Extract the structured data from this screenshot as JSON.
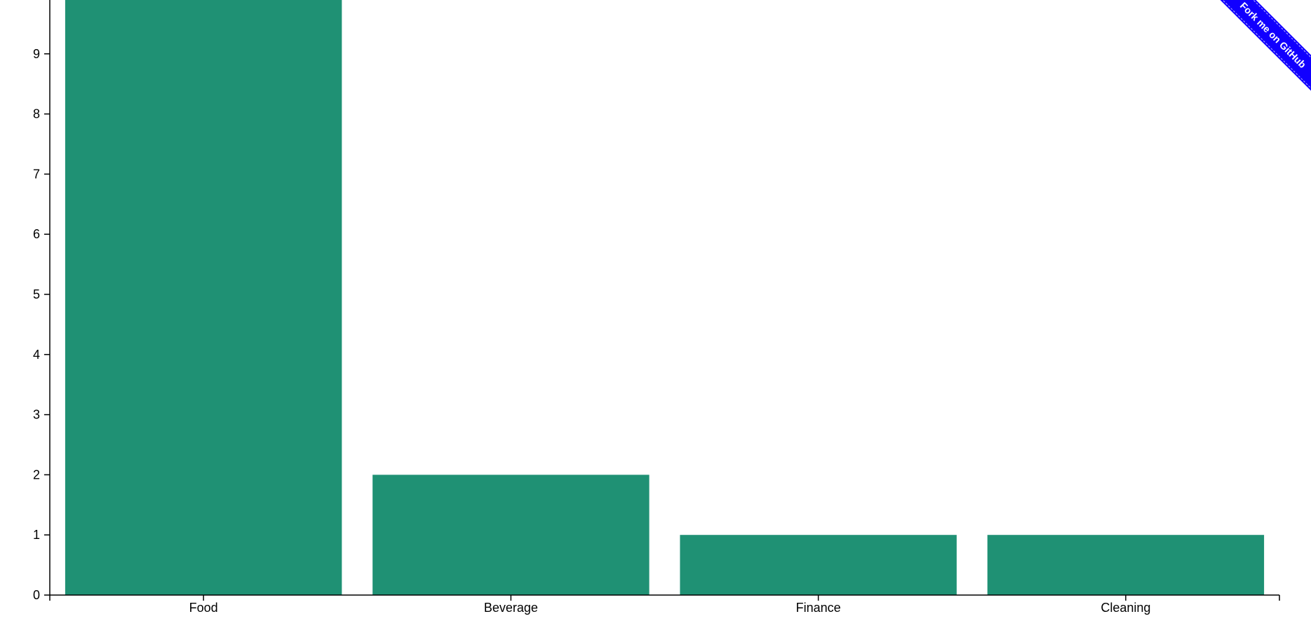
{
  "ribbon": {
    "text": "Fork me on GitHub",
    "color": "#1100ff"
  },
  "chart_data": {
    "type": "bar",
    "categories": [
      "Food",
      "Beverage",
      "Finance",
      "Cleaning"
    ],
    "values": [
      10,
      2,
      1,
      1
    ],
    "yticks": [
      0,
      1,
      2,
      3,
      4,
      5,
      6,
      7,
      8,
      9
    ],
    "ylim": [
      0,
      10
    ],
    "bar_color": "#1f9174",
    "grid": false,
    "title": "",
    "xlabel": "",
    "ylabel": ""
  }
}
